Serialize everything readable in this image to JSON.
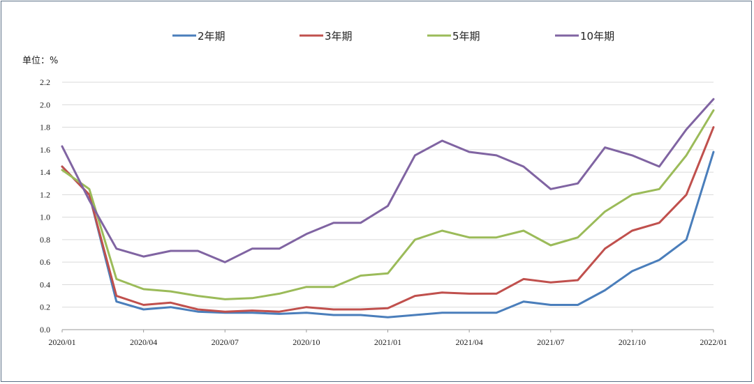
{
  "chart_data": {
    "type": "line",
    "unit_label": "单位：%",
    "ylim": [
      0.0,
      2.2
    ],
    "y_ticks": [
      "0.0",
      "0.2",
      "0.4",
      "0.6",
      "0.8",
      "1.0",
      "1.2",
      "1.4",
      "1.6",
      "1.8",
      "2.0",
      "2.2"
    ],
    "x_ticks": [
      "2020/01",
      "2020/04",
      "2020/07",
      "2020/10",
      "2021/01",
      "2021/04",
      "2021/07",
      "2021/10",
      "2022/01"
    ],
    "grid": true,
    "legend_position": "top",
    "x": [
      "2020/01",
      "2020/02",
      "2020/03",
      "2020/04",
      "2020/05",
      "2020/06",
      "2020/07",
      "2020/08",
      "2020/09",
      "2020/10",
      "2020/11",
      "2020/12",
      "2021/01",
      "2021/02",
      "2021/03",
      "2021/04",
      "2021/05",
      "2021/06",
      "2021/07",
      "2021/08",
      "2021/09",
      "2021/10",
      "2021/11",
      "2021/12",
      "2022/01"
    ],
    "series": [
      {
        "name": "2年期",
        "color": "#4a7ebb",
        "values": [
          1.45,
          1.2,
          0.25,
          0.18,
          0.2,
          0.16,
          0.15,
          0.15,
          0.14,
          0.15,
          0.13,
          0.13,
          0.11,
          0.13,
          0.15,
          0.15,
          0.15,
          0.25,
          0.22,
          0.22,
          0.35,
          0.52,
          0.62,
          0.8,
          1.58
        ]
      },
      {
        "name": "3年期",
        "color": "#c0504d",
        "values": [
          1.45,
          1.2,
          0.3,
          0.22,
          0.24,
          0.18,
          0.16,
          0.17,
          0.16,
          0.2,
          0.18,
          0.18,
          0.19,
          0.3,
          0.33,
          0.32,
          0.32,
          0.45,
          0.42,
          0.44,
          0.72,
          0.88,
          0.95,
          1.2,
          1.8
        ]
      },
      {
        "name": "5年期",
        "color": "#9bbb59",
        "values": [
          1.42,
          1.25,
          0.45,
          0.36,
          0.34,
          0.3,
          0.27,
          0.28,
          0.32,
          0.38,
          0.38,
          0.48,
          0.5,
          0.8,
          0.88,
          0.82,
          0.82,
          0.88,
          0.75,
          0.82,
          1.05,
          1.2,
          1.25,
          1.55,
          1.95
        ]
      },
      {
        "name": "10年期",
        "color": "#8064a2",
        "values": [
          1.63,
          1.15,
          0.72,
          0.65,
          0.7,
          0.7,
          0.6,
          0.72,
          0.72,
          0.85,
          0.95,
          0.95,
          1.1,
          1.55,
          1.68,
          1.58,
          1.55,
          1.45,
          1.25,
          1.3,
          1.62,
          1.55,
          1.45,
          1.78,
          2.05
        ]
      }
    ]
  }
}
